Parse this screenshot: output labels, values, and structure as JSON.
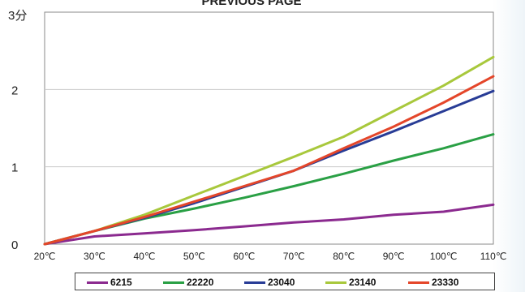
{
  "chart_data": {
    "type": "line",
    "title": "PREVIOUS PAGE",
    "x": [
      "20℃",
      "30℃",
      "40℃",
      "50℃",
      "60℃",
      "70℃",
      "80℃",
      "90℃",
      "100℃",
      "110℃"
    ],
    "y_ticks": [
      {
        "value": 0,
        "label": "0"
      },
      {
        "value": 1,
        "label": "1"
      },
      {
        "value": 2,
        "label": "2"
      },
      {
        "value": 3,
        "label": "3分"
      }
    ],
    "ylim": [
      0,
      3
    ],
    "grid": true,
    "legend_position": "bottom",
    "series": [
      {
        "name": "6215",
        "color": "#8b2a8f",
        "values": [
          0,
          0.1,
          0.14,
          0.18,
          0.23,
          0.28,
          0.32,
          0.38,
          0.42,
          0.51
        ]
      },
      {
        "name": "22220",
        "color": "#2aa045",
        "values": [
          0,
          0.17,
          0.33,
          0.46,
          0.6,
          0.75,
          0.91,
          1.08,
          1.24,
          1.42
        ]
      },
      {
        "name": "23040",
        "color": "#283c96",
        "values": [
          0,
          0.17,
          0.34,
          0.53,
          0.74,
          0.95,
          1.21,
          1.46,
          1.72,
          1.98
        ]
      },
      {
        "name": "23140",
        "color": "#a8c83c",
        "values": [
          0,
          0.17,
          0.38,
          0.63,
          0.88,
          1.13,
          1.39,
          1.72,
          2.05,
          2.42
        ]
      },
      {
        "name": "23330",
        "color": "#e4462a",
        "values": [
          0,
          0.17,
          0.35,
          0.55,
          0.75,
          0.95,
          1.24,
          1.52,
          1.83,
          2.17
        ]
      }
    ]
  }
}
